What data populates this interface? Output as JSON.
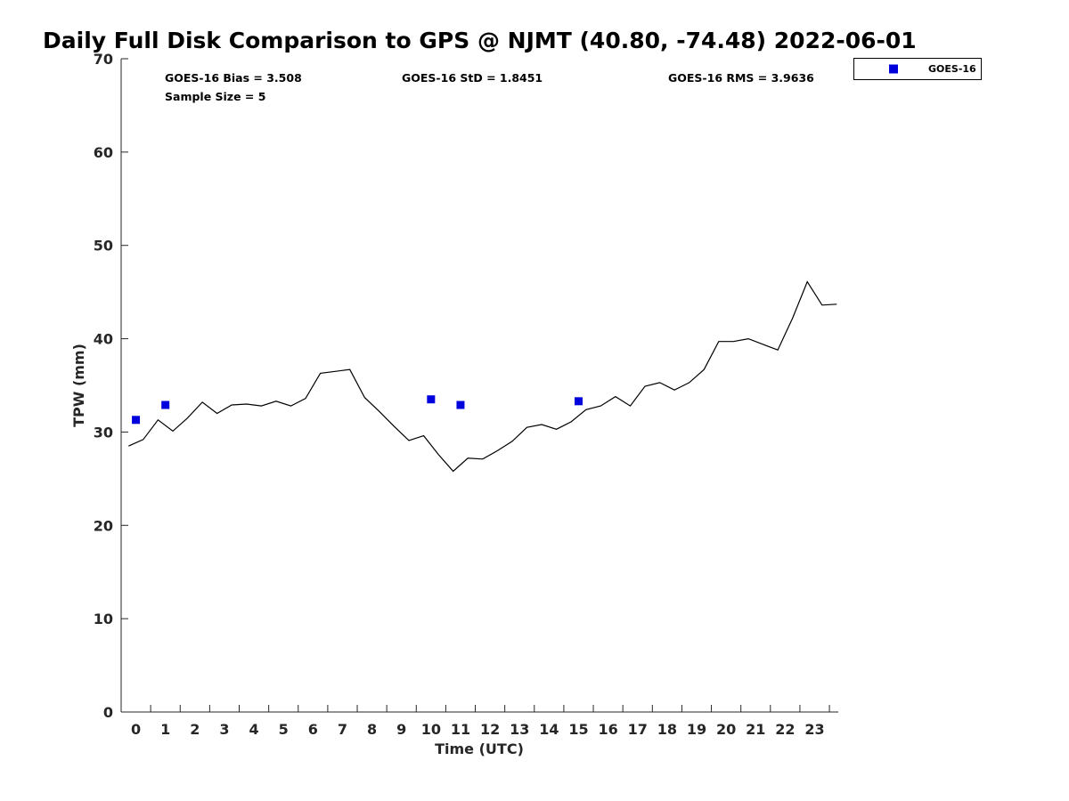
{
  "chart_data": {
    "type": "scatter",
    "title": "Daily Full Disk Comparison to GPS @ NJMT (40.80, -74.48) 2022-06-01",
    "xlabel": "Time (UTC)",
    "ylabel": "TPW (mm)",
    "xlim": [
      -0.5,
      23.8
    ],
    "ylim": [
      0,
      70
    ],
    "xticks": [
      "0",
      "1",
      "2",
      "3",
      "4",
      "5",
      "6",
      "7",
      "8",
      "9",
      "10",
      "11",
      "12",
      "13",
      "14",
      "15",
      "16",
      "17",
      "18",
      "19",
      "20",
      "21",
      "22",
      "23"
    ],
    "yticks": [
      "0",
      "10",
      "20",
      "30",
      "40",
      "50",
      "60",
      "70"
    ],
    "grid": false,
    "legend_position": "top-right outside",
    "stats": {
      "bias": "GOES-16 Bias = 3.508",
      "std": "GOES-16 StD = 1.8451",
      "rms": "GOES-16 RMS = 3.9636",
      "sample": "Sample Size = 5"
    },
    "series": [
      {
        "name": "GOES-16",
        "kind": "markers",
        "color": "#0000dd",
        "x": [
          0.0,
          1.0,
          10.0,
          11.0,
          15.0
        ],
        "y": [
          31.3,
          32.9,
          33.5,
          32.9,
          33.3
        ]
      },
      {
        "kind": "line",
        "color": "#000000",
        "x": [
          -0.25,
          0.25,
          0.75,
          1.25,
          1.75,
          2.25,
          2.75,
          3.25,
          3.75,
          4.25,
          4.75,
          5.25,
          5.75,
          6.25,
          6.75,
          7.25,
          7.75,
          8.25,
          8.75,
          9.25,
          9.75,
          10.25,
          10.75,
          11.25,
          11.75,
          12.25,
          12.75,
          13.25,
          13.75,
          14.25,
          14.75,
          15.25,
          15.75,
          16.25,
          16.75,
          17.25,
          17.75,
          18.25,
          18.75,
          19.25,
          19.75,
          20.25,
          20.75,
          21.25,
          21.75,
          22.25,
          22.75,
          23.25,
          23.75
        ],
        "y": [
          28.5,
          29.2,
          31.3,
          30.1,
          31.5,
          33.2,
          32.0,
          32.9,
          33.0,
          32.8,
          33.3,
          32.8,
          33.6,
          36.3,
          36.5,
          36.7,
          33.7,
          32.2,
          30.6,
          29.1,
          29.6,
          27.6,
          25.8,
          27.2,
          27.1,
          28.0,
          29.0,
          30.5,
          30.8,
          30.3,
          31.1,
          32.4,
          32.8,
          33.8,
          32.8,
          34.9,
          35.3,
          34.5,
          35.3,
          36.7,
          39.7,
          39.7,
          40.0,
          39.4,
          38.8,
          42.2,
          46.1,
          43.6,
          43.7
        ]
      }
    ]
  }
}
